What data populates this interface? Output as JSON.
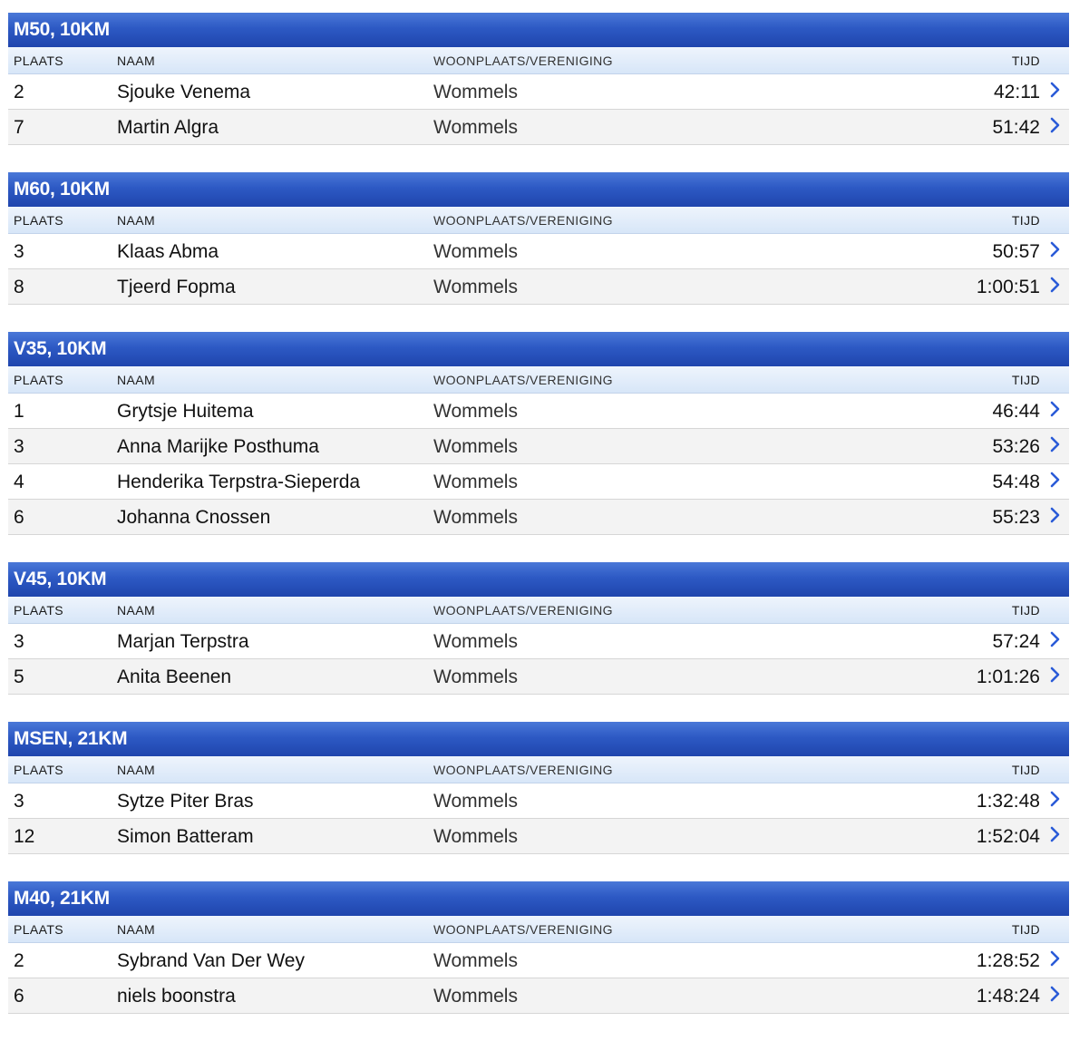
{
  "columns": {
    "place": "PLAATS",
    "name": "NAAM",
    "city": "WOONPLAATS/VERENIGING",
    "time": "TIJD"
  },
  "colors": {
    "header_blue": "#2d59c4",
    "subheader_blue": "#d7e6f8",
    "chevron": "#2a5bd7"
  },
  "icons": {
    "row_action": "chevron-right-icon"
  },
  "categories": [
    {
      "title": "M50, 10KM",
      "rows": [
        {
          "place": "2",
          "name": "Sjouke Venema",
          "city": "Wommels",
          "time": "42:11"
        },
        {
          "place": "7",
          "name": "Martin Algra",
          "city": "Wommels",
          "time": "51:42"
        }
      ]
    },
    {
      "title": "M60, 10KM",
      "rows": [
        {
          "place": "3",
          "name": "Klaas Abma",
          "city": "Wommels",
          "time": "50:57"
        },
        {
          "place": "8",
          "name": "Tjeerd Fopma",
          "city": "Wommels",
          "time": "1:00:51"
        }
      ]
    },
    {
      "title": "V35, 10KM",
      "rows": [
        {
          "place": "1",
          "name": "Grytsje Huitema",
          "city": "Wommels",
          "time": "46:44"
        },
        {
          "place": "3",
          "name": "Anna Marijke Posthuma",
          "city": "Wommels",
          "time": "53:26"
        },
        {
          "place": "4",
          "name": "Henderika Terpstra-Sieperda",
          "city": "Wommels",
          "time": "54:48"
        },
        {
          "place": "6",
          "name": "Johanna Cnossen",
          "city": "Wommels",
          "time": "55:23"
        }
      ]
    },
    {
      "title": "V45, 10KM",
      "rows": [
        {
          "place": "3",
          "name": "Marjan Terpstra",
          "city": "Wommels",
          "time": "57:24"
        },
        {
          "place": "5",
          "name": "Anita Beenen",
          "city": "Wommels",
          "time": "1:01:26"
        }
      ]
    },
    {
      "title": "MSEN, 21KM",
      "rows": [
        {
          "place": "3",
          "name": "Sytze Piter Bras",
          "city": "Wommels",
          "time": "1:32:48"
        },
        {
          "place": "12",
          "name": "Simon Batteram",
          "city": "Wommels",
          "time": "1:52:04"
        }
      ]
    },
    {
      "title": "M40, 21KM",
      "rows": [
        {
          "place": "2",
          "name": "Sybrand Van Der Wey",
          "city": "Wommels",
          "time": "1:28:52"
        },
        {
          "place": "6",
          "name": "niels boonstra",
          "city": "Wommels",
          "time": "1:48:24"
        }
      ]
    }
  ]
}
